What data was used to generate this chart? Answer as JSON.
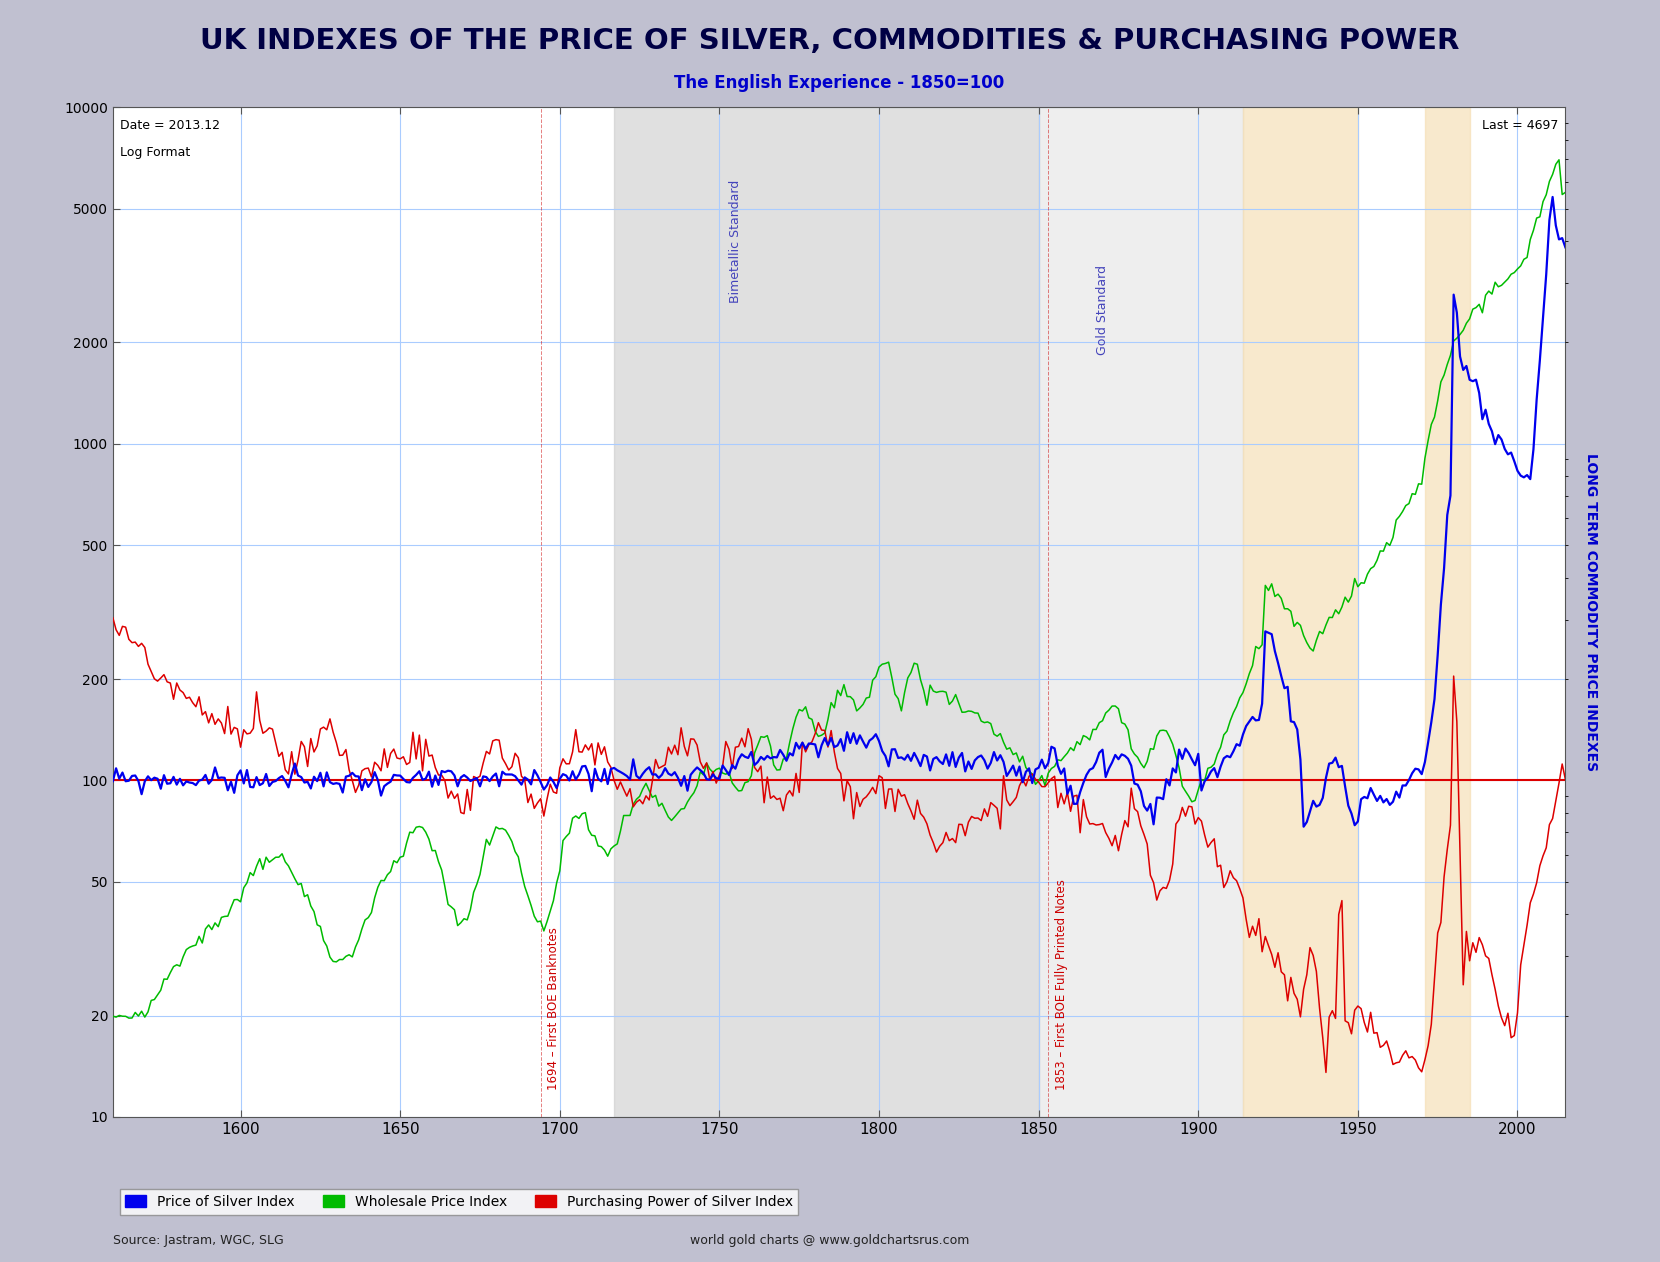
{
  "title": "UK INDEXES OF THE PRICE OF SILVER, COMMODITIES & PURCHASING POWER",
  "subtitle": "The English Experience - 1850=100",
  "title_bg_color": "#7777cc",
  "title_text_color": "#000044",
  "subtitle_color": "#0000cc",
  "fig_bg_color": "#c0c0d0",
  "plot_bg_color": "#ffffff",
  "outer_bg_color": "#d8d8e8",
  "annotation_date": "Date = 2013.12",
  "annotation_format": "Log Format",
  "annotation_last": "Last = 4697",
  "ylabel_right": "LONG TERM COMMODITY PRICE INDEXES",
  "source_left": "Source: Jastram, WGC, SLG",
  "source_right": "world gold charts @ www.goldchartsrus.com",
  "xmin": 1560,
  "xmax": 2015,
  "ymin": 10,
  "ymax": 10000,
  "yticks": [
    10,
    20,
    50,
    100,
    200,
    500,
    1000,
    2000,
    5000,
    10000
  ],
  "ytick_labels": [
    "10",
    "20",
    "50",
    "100",
    "200",
    "500",
    "1000",
    "2000",
    "5000",
    "10000"
  ],
  "xticks": [
    1600,
    1650,
    1700,
    1750,
    1800,
    1850,
    1900,
    1950,
    2000
  ],
  "reference_line_y": 100,
  "line_blue_color": "#0000ee",
  "line_green_color": "#00bb00",
  "line_red_color": "#dd0000",
  "grid_color": "#aaccff",
  "bimetallic_xmin": 1717,
  "bimetallic_xmax": 1850,
  "gold_standard_xmin": 1850,
  "gold_standard_xmax": 1914,
  "tan1_xmin": 1914,
  "tan1_xmax": 1950,
  "tan2_xmin": 1971,
  "tan2_xmax": 1985,
  "grey_color": "#c8c8c8",
  "grey_alpha": 0.55,
  "gold_std_grey_alpha": 0.3,
  "tan_color": "#f5deb3",
  "tan_alpha": 0.65,
  "region_label_color": "#4444bb",
  "vline_color": "#cc0000",
  "legend_entries": [
    {
      "label": "Price of Silver Index",
      "color": "#0000ee"
    },
    {
      "label": "Wholesale Price Index",
      "color": "#00bb00"
    },
    {
      "label": "Purchasing Power of Silver Index",
      "color": "#dd0000"
    }
  ]
}
